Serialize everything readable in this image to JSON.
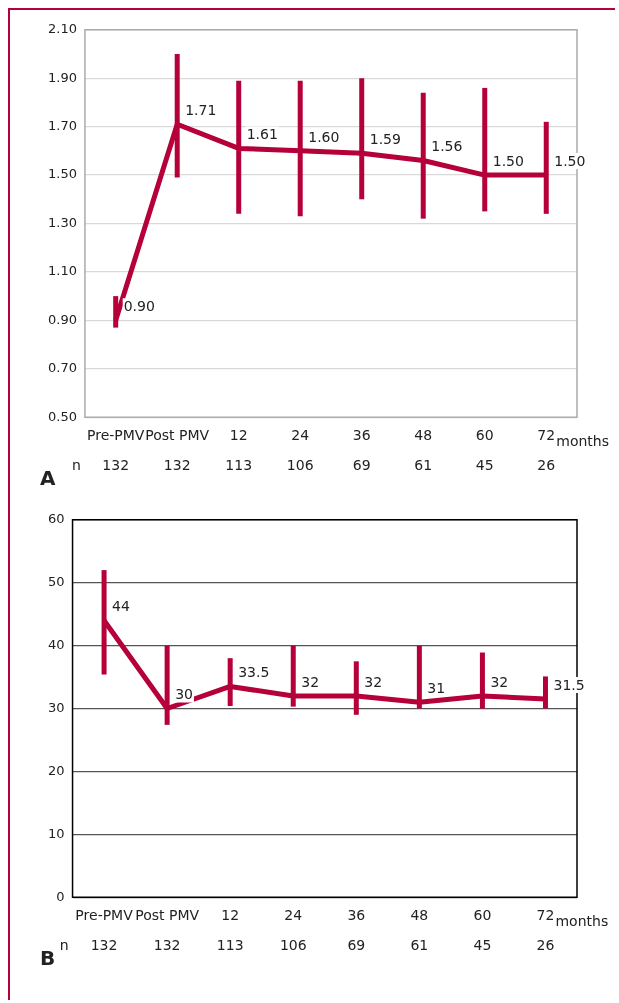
{
  "chart_data": [
    {
      "type": "line",
      "title": "A",
      "xlabel": "months",
      "categories": [
        "Pre-PMV",
        "Post PMV",
        "12",
        "24",
        "36",
        "48",
        "60",
        "72"
      ],
      "series": [
        {
          "color": "#b5003a",
          "values": [
            0.9,
            1.71,
            1.61,
            1.6,
            1.59,
            1.56,
            1.5,
            1.5
          ],
          "value_labels": [
            "0.90",
            "1.71",
            "1.61",
            "1.60",
            "1.59",
            "1.56",
            "1.50",
            "1.50"
          ],
          "errors": [
            [
              0.87,
              1.0
            ],
            [
              1.49,
              2.0
            ],
            [
              1.34,
              1.89
            ],
            [
              1.33,
              1.89
            ],
            [
              1.4,
              1.9
            ],
            [
              1.32,
              1.84
            ],
            [
              1.35,
              1.86
            ],
            [
              1.34,
              1.72
            ]
          ]
        }
      ],
      "ylim": [
        0.5,
        2.1
      ],
      "yticks": [
        {
          "value": 0.5,
          "label": "0.50"
        },
        {
          "value": 0.7,
          "label": "0.70"
        },
        {
          "value": 0.9,
          "label": "0.90"
        },
        {
          "value": 1.1,
          "label": "1.10"
        },
        {
          "value": 1.3,
          "label": "1.30"
        },
        {
          "value": 1.5,
          "label": "1.50"
        },
        {
          "value": 1.7,
          "label": "1.70"
        },
        {
          "value": 1.9,
          "label": "1.90"
        },
        {
          "value": 2.1,
          "label": "2.10"
        }
      ],
      "grid": "y",
      "legend": false,
      "annotations": [
        "n",
        "132",
        "132",
        "113",
        "106",
        "69",
        "61",
        "45",
        "26"
      ]
    },
    {
      "type": "line",
      "title": "B",
      "xlabel": "months",
      "categories": [
        "Pre-PMV",
        "Post PMV",
        "12",
        "24",
        "36",
        "48",
        "60",
        "72"
      ],
      "series": [
        {
          "color": "#b5003a",
          "values": [
            44,
            30,
            33.5,
            32,
            32,
            31,
            32,
            31.5
          ],
          "value_labels": [
            "44",
            "30",
            "33.5",
            "32",
            "32",
            "31",
            "32",
            "31.5"
          ],
          "errors": [
            [
              35.4,
              52
            ],
            [
              27.4,
              40
            ],
            [
              30.4,
              38
            ],
            [
              30.3,
              40
            ],
            [
              29,
              37.5
            ],
            [
              30,
              40
            ],
            [
              30,
              38.9
            ],
            [
              30,
              35.1
            ]
          ]
        }
      ],
      "ylim": [
        0,
        60
      ],
      "yticks": [
        0,
        10,
        20,
        30,
        40,
        50,
        60
      ],
      "grid": "y",
      "legend": false,
      "annotations": [
        "n",
        "132",
        "132",
        "113",
        "106",
        "69",
        "61",
        "45",
        "26"
      ]
    }
  ]
}
